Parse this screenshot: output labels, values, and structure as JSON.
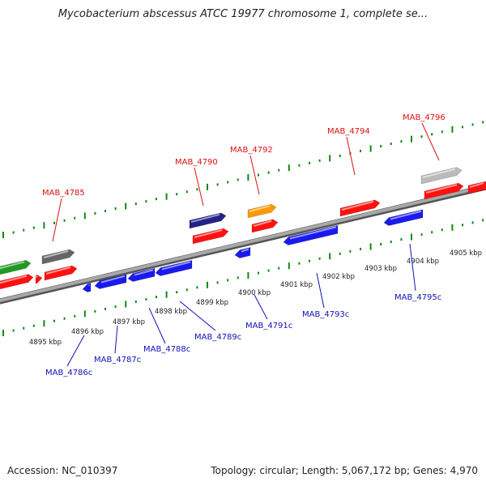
{
  "title": "Mycobacterium abscessus ATCC 19977 chromosome 1, complete se...",
  "footer": {
    "accession": "Accession: NC_010397",
    "summary": "Topology: circular; Length: 5,067,172 bp; Genes: 4,970"
  },
  "colors": {
    "forward_label": "#dd1111",
    "reverse_label": "#1111bb",
    "tick": "#118811",
    "backbone": "#8a8a8a",
    "red": "#ff1111",
    "blue": "#1a1aee",
    "green": "#229922",
    "gray": "#666666",
    "lightgray": "#bbbbbb",
    "orange": "#ff9900",
    "navy": "#222288"
  },
  "scale_labels": [
    "4895 kbp",
    "4896 kbp",
    "4897 kbp",
    "4898 kbp",
    "4899 kbp",
    "4900 kbp",
    "4901 kbp",
    "4902 kbp",
    "4903 kbp",
    "4904 kbp",
    "4905 kbp"
  ],
  "forward_genes": [
    "MAB_4785",
    "MAB_4790",
    "MAB_4792",
    "MAB_4794",
    "MAB_4796"
  ],
  "reverse_genes": [
    "MAB_4786c",
    "MAB_4787c",
    "MAB_4788c",
    "MAB_4789c",
    "MAB_4791c",
    "MAB_4793c",
    "MAB_4795c"
  ]
}
